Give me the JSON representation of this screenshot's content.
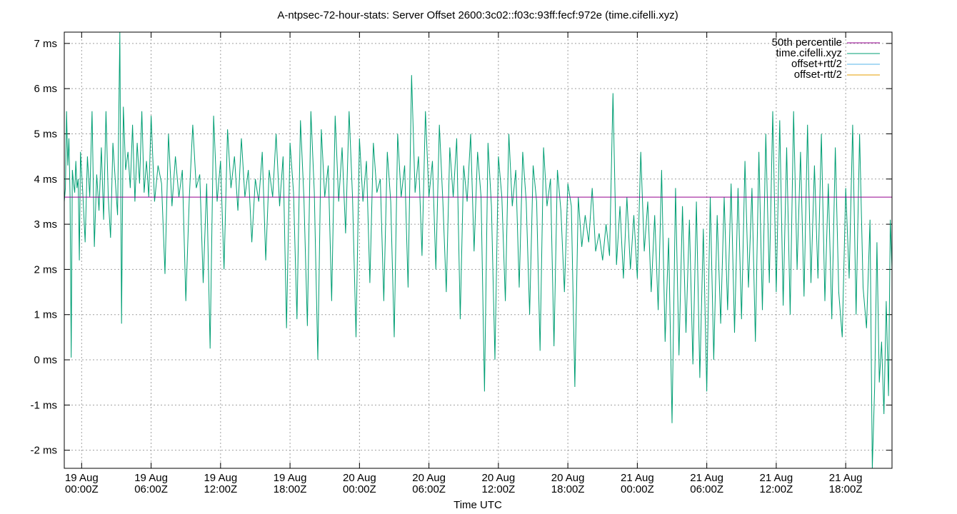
{
  "chart_data": {
    "type": "line",
    "title": "A-ntpsec-72-hour-stats: Server Offset 2600:3c02::f03c:93ff:fecf:972e (time.cifelli.xyz)",
    "xlabel": "Time UTC",
    "ylabel": "",
    "x_range_hours": [
      -1.5,
      70.0
    ],
    "ylim": [
      -2.4,
      7.25
    ],
    "y_ticks": [
      -2,
      -1,
      0,
      1,
      2,
      3,
      4,
      5,
      6,
      7
    ],
    "y_tick_labels": [
      "-2 ms",
      "-1 ms",
      "0 ms",
      "1 ms",
      "2 ms",
      "3 ms",
      "4 ms",
      "5 ms",
      "6 ms",
      "7 ms"
    ],
    "x_ticks_hours": [
      0,
      6,
      12,
      18,
      24,
      30,
      36,
      42,
      48,
      54,
      60,
      66
    ],
    "x_tick_labels": [
      [
        "19 Aug",
        "00:00Z"
      ],
      [
        "19 Aug",
        "06:00Z"
      ],
      [
        "19 Aug",
        "12:00Z"
      ],
      [
        "19 Aug",
        "18:00Z"
      ],
      [
        "20 Aug",
        "00:00Z"
      ],
      [
        "20 Aug",
        "06:00Z"
      ],
      [
        "20 Aug",
        "12:00Z"
      ],
      [
        "20 Aug",
        "18:00Z"
      ],
      [
        "21 Aug",
        "00:00Z"
      ],
      [
        "21 Aug",
        "06:00Z"
      ],
      [
        "21 Aug",
        "12:00Z"
      ],
      [
        "21 Aug",
        "18:00Z"
      ]
    ],
    "grid": true,
    "legend_position": "top-right",
    "legend": [
      {
        "label": "50th percentile",
        "color": "#94008f"
      },
      {
        "label": "time.cifelli.xyz",
        "color": "#009e73"
      },
      {
        "label": "offset+rtt/2",
        "color": "#56b4e9"
      },
      {
        "label": "offset-rtt/2",
        "color": "#e69f00"
      }
    ],
    "percentile_50": 3.6,
    "series": [
      {
        "name": "time.cifelli.xyz",
        "color": "#009e73",
        "points": [
          [
            -1.5,
            3.5
          ],
          [
            -1.4,
            3.8
          ],
          [
            -1.3,
            5.5
          ],
          [
            -1.2,
            4.3
          ],
          [
            -1.1,
            4.9
          ],
          [
            -1.0,
            3.6
          ],
          [
            -0.9,
            0.05
          ],
          [
            -0.8,
            4.2
          ],
          [
            -0.7,
            3.9
          ],
          [
            -0.6,
            3.7
          ],
          [
            -0.5,
            4.4
          ],
          [
            -0.4,
            3.8
          ],
          [
            -0.3,
            4.0
          ],
          [
            -0.2,
            2.2
          ],
          [
            -0.1,
            4.6
          ],
          [
            0.1,
            3.7
          ],
          [
            0.3,
            2.6
          ],
          [
            0.5,
            4.5
          ],
          [
            0.7,
            3.6
          ],
          [
            0.9,
            5.5
          ],
          [
            1.1,
            2.5
          ],
          [
            1.3,
            4.1
          ],
          [
            1.5,
            3.3
          ],
          [
            1.7,
            4.7
          ],
          [
            1.9,
            3.1
          ],
          [
            2.1,
            5.5
          ],
          [
            2.3,
            3.6
          ],
          [
            2.5,
            2.7
          ],
          [
            2.7,
            4.8
          ],
          [
            2.9,
            4.0
          ],
          [
            3.1,
            3.2
          ],
          [
            3.3,
            7.25
          ],
          [
            3.45,
            0.8
          ],
          [
            3.6,
            5.6
          ],
          [
            3.8,
            4.2
          ],
          [
            4.0,
            4.6
          ],
          [
            4.2,
            3.8
          ],
          [
            4.4,
            5.2
          ],
          [
            4.6,
            3.5
          ],
          [
            4.8,
            4.8
          ],
          [
            5.0,
            3.9
          ],
          [
            5.2,
            5.5
          ],
          [
            5.4,
            3.7
          ],
          [
            5.6,
            4.4
          ],
          [
            5.8,
            3.6
          ],
          [
            6.0,
            5.4
          ],
          [
            6.3,
            3.5
          ],
          [
            6.6,
            4.3
          ],
          [
            6.9,
            3.9
          ],
          [
            7.2,
            1.9
          ],
          [
            7.5,
            5.0
          ],
          [
            7.8,
            3.4
          ],
          [
            8.1,
            4.5
          ],
          [
            8.4,
            3.6
          ],
          [
            8.7,
            4.2
          ],
          [
            9.0,
            1.3
          ],
          [
            9.3,
            3.6
          ],
          [
            9.6,
            5.2
          ],
          [
            9.9,
            3.8
          ],
          [
            10.2,
            4.1
          ],
          [
            10.5,
            1.7
          ],
          [
            10.8,
            3.9
          ],
          [
            11.1,
            0.25
          ],
          [
            11.4,
            5.4
          ],
          [
            11.7,
            3.5
          ],
          [
            12.0,
            4.4
          ],
          [
            12.3,
            2.0
          ],
          [
            12.6,
            5.1
          ],
          [
            12.9,
            3.8
          ],
          [
            13.2,
            4.5
          ],
          [
            13.5,
            3.3
          ],
          [
            13.8,
            4.9
          ],
          [
            14.1,
            3.6
          ],
          [
            14.4,
            4.2
          ],
          [
            14.7,
            2.6
          ],
          [
            15.0,
            4.0
          ],
          [
            15.3,
            3.5
          ],
          [
            15.6,
            4.6
          ],
          [
            15.9,
            2.2
          ],
          [
            16.2,
            4.2
          ],
          [
            16.5,
            3.6
          ],
          [
            16.8,
            5.0
          ],
          [
            17.1,
            3.4
          ],
          [
            17.4,
            4.5
          ],
          [
            17.7,
            0.7
          ],
          [
            18.0,
            4.8
          ],
          [
            18.3,
            3.7
          ],
          [
            18.6,
            0.9
          ],
          [
            18.9,
            5.3
          ],
          [
            19.2,
            3.6
          ],
          [
            19.5,
            0.75
          ],
          [
            19.8,
            5.5
          ],
          [
            20.1,
            3.7
          ],
          [
            20.4,
            0.0
          ],
          [
            20.7,
            5.1
          ],
          [
            21.0,
            3.6
          ],
          [
            21.3,
            4.3
          ],
          [
            21.6,
            1.3
          ],
          [
            21.9,
            5.4
          ],
          [
            22.2,
            3.5
          ],
          [
            22.5,
            4.7
          ],
          [
            22.8,
            2.8
          ],
          [
            23.1,
            5.5
          ],
          [
            23.4,
            3.6
          ],
          [
            23.7,
            0.5
          ],
          [
            24.0,
            4.9
          ],
          [
            24.3,
            3.5
          ],
          [
            24.6,
            4.4
          ],
          [
            24.9,
            1.7
          ],
          [
            25.2,
            4.8
          ],
          [
            25.5,
            3.7
          ],
          [
            25.8,
            4.0
          ],
          [
            26.1,
            1.3
          ],
          [
            26.4,
            4.6
          ],
          [
            26.7,
            3.5
          ],
          [
            27.0,
            0.5
          ],
          [
            27.3,
            5.0
          ],
          [
            27.6,
            3.6
          ],
          [
            27.9,
            4.3
          ],
          [
            28.2,
            1.6
          ],
          [
            28.5,
            6.3
          ],
          [
            28.8,
            3.7
          ],
          [
            29.1,
            4.5
          ],
          [
            29.4,
            2.3
          ],
          [
            29.7,
            5.5
          ],
          [
            30.0,
            3.6
          ],
          [
            30.3,
            4.4
          ],
          [
            30.6,
            2.0
          ],
          [
            30.9,
            5.2
          ],
          [
            31.2,
            3.5
          ],
          [
            31.5,
            1.5
          ],
          [
            31.8,
            4.7
          ],
          [
            32.1,
            3.6
          ],
          [
            32.4,
            4.9
          ],
          [
            32.7,
            0.9
          ],
          [
            33.0,
            4.3
          ],
          [
            33.3,
            3.5
          ],
          [
            33.6,
            5.0
          ],
          [
            33.9,
            2.4
          ],
          [
            34.2,
            4.6
          ],
          [
            34.5,
            3.6
          ],
          [
            34.8,
            -0.7
          ],
          [
            35.1,
            4.8
          ],
          [
            35.4,
            3.4
          ],
          [
            35.7,
            0.0
          ],
          [
            36.0,
            4.5
          ],
          [
            36.3,
            3.6
          ],
          [
            36.6,
            1.3
          ],
          [
            36.9,
            5.0
          ],
          [
            37.2,
            3.4
          ],
          [
            37.5,
            4.2
          ],
          [
            37.8,
            1.6
          ],
          [
            38.1,
            4.6
          ],
          [
            38.4,
            3.5
          ],
          [
            38.7,
            1.0
          ],
          [
            39.0,
            4.3
          ],
          [
            39.3,
            3.5
          ],
          [
            39.6,
            0.2
          ],
          [
            39.9,
            4.7
          ],
          [
            40.2,
            3.4
          ],
          [
            40.5,
            4.0
          ],
          [
            40.8,
            0.3
          ],
          [
            41.1,
            4.2
          ],
          [
            41.4,
            3.3
          ],
          [
            41.7,
            1.5
          ],
          [
            42.0,
            3.9
          ],
          [
            42.3,
            3.4
          ],
          [
            42.6,
            -0.6
          ],
          [
            42.9,
            3.6
          ],
          [
            43.2,
            2.5
          ],
          [
            43.5,
            3.2
          ],
          [
            43.8,
            2.6
          ],
          [
            44.1,
            3.8
          ],
          [
            44.4,
            2.4
          ],
          [
            44.7,
            2.8
          ],
          [
            45.0,
            2.2
          ],
          [
            45.3,
            3.0
          ],
          [
            45.6,
            2.3
          ],
          [
            45.9,
            5.9
          ],
          [
            46.2,
            2.1
          ],
          [
            46.5,
            3.4
          ],
          [
            46.8,
            1.8
          ],
          [
            47.1,
            3.6
          ],
          [
            47.4,
            2.0
          ],
          [
            47.7,
            3.2
          ],
          [
            48.0,
            1.8
          ],
          [
            48.3,
            4.6
          ],
          [
            48.6,
            2.4
          ],
          [
            48.9,
            3.5
          ],
          [
            49.2,
            1.5
          ],
          [
            49.5,
            3.2
          ],
          [
            49.8,
            1.1
          ],
          [
            50.1,
            4.2
          ],
          [
            50.4,
            0.4
          ],
          [
            50.7,
            2.7
          ],
          [
            51.0,
            -1.4
          ],
          [
            51.3,
            3.8
          ],
          [
            51.6,
            0.1
          ],
          [
            51.9,
            3.4
          ],
          [
            52.2,
            0.6
          ],
          [
            52.5,
            3.1
          ],
          [
            52.8,
            -0.1
          ],
          [
            53.1,
            3.5
          ],
          [
            53.4,
            -0.4
          ],
          [
            53.7,
            2.9
          ],
          [
            54.0,
            -0.7
          ],
          [
            54.3,
            3.6
          ],
          [
            54.6,
            0.0
          ],
          [
            54.9,
            3.2
          ],
          [
            55.2,
            0.8
          ],
          [
            55.5,
            3.6
          ],
          [
            55.8,
            1.1
          ],
          [
            56.1,
            3.9
          ],
          [
            56.4,
            0.6
          ],
          [
            56.7,
            3.8
          ],
          [
            57.0,
            0.9
          ],
          [
            57.3,
            4.4
          ],
          [
            57.6,
            1.6
          ],
          [
            57.9,
            3.8
          ],
          [
            58.2,
            0.4
          ],
          [
            58.5,
            4.6
          ],
          [
            58.8,
            1.1
          ],
          [
            59.1,
            5.0
          ],
          [
            59.4,
            1.7
          ],
          [
            59.7,
            5.5
          ],
          [
            60.0,
            1.5
          ],
          [
            60.3,
            5.3
          ],
          [
            60.6,
            1.2
          ],
          [
            60.9,
            4.7
          ],
          [
            61.2,
            1.0
          ],
          [
            61.5,
            5.5
          ],
          [
            61.8,
            2.0
          ],
          [
            62.1,
            4.6
          ],
          [
            62.4,
            1.4
          ],
          [
            62.7,
            5.2
          ],
          [
            63.0,
            1.7
          ],
          [
            63.3,
            4.3
          ],
          [
            63.6,
            1.8
          ],
          [
            63.9,
            5.0
          ],
          [
            64.2,
            1.3
          ],
          [
            64.5,
            3.9
          ],
          [
            64.8,
            0.9
          ],
          [
            65.1,
            4.7
          ],
          [
            65.4,
            1.5
          ],
          [
            65.7,
            0.5
          ],
          [
            66.0,
            3.8
          ],
          [
            66.3,
            1.8
          ],
          [
            66.6,
            5.2
          ],
          [
            66.9,
            1.0
          ],
          [
            67.2,
            5.0
          ],
          [
            67.5,
            1.6
          ],
          [
            67.8,
            0.7
          ],
          [
            68.1,
            3.1
          ],
          [
            68.3,
            -2.4
          ],
          [
            68.5,
            -0.6
          ],
          [
            68.7,
            2.6
          ],
          [
            68.9,
            -0.5
          ],
          [
            69.1,
            0.4
          ],
          [
            69.3,
            -1.2
          ],
          [
            69.5,
            1.3
          ],
          [
            69.7,
            -0.8
          ],
          [
            69.85,
            3.1
          ],
          [
            70.0,
            2.0
          ]
        ]
      },
      {
        "name": "offset+rtt/2",
        "color": "#56b4e9",
        "points": []
      },
      {
        "name": "offset-rtt/2",
        "color": "#e69f00",
        "points": []
      }
    ]
  }
}
